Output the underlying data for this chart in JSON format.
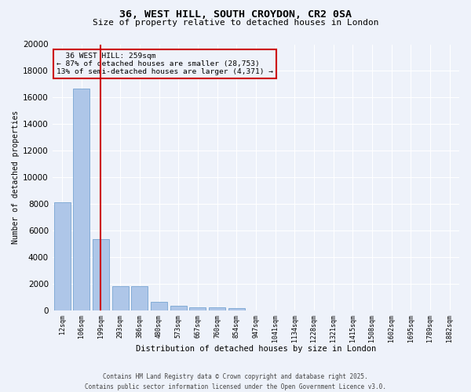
{
  "title_line1": "36, WEST HILL, SOUTH CROYDON, CR2 0SA",
  "title_line2": "Size of property relative to detached houses in London",
  "xlabel": "Distribution of detached houses by size in London",
  "ylabel": "Number of detached properties",
  "categories": [
    "12sqm",
    "106sqm",
    "199sqm",
    "293sqm",
    "386sqm",
    "480sqm",
    "573sqm",
    "667sqm",
    "760sqm",
    "854sqm",
    "947sqm",
    "1041sqm",
    "1134sqm",
    "1228sqm",
    "1321sqm",
    "1415sqm",
    "1508sqm",
    "1602sqm",
    "1695sqm",
    "1789sqm",
    "1882sqm"
  ],
  "values": [
    8100,
    16700,
    5350,
    1850,
    1850,
    620,
    340,
    260,
    210,
    150,
    0,
    0,
    0,
    0,
    0,
    0,
    0,
    0,
    0,
    0,
    0
  ],
  "bar_color": "#aec6e8",
  "bar_edge_color": "#6699cc",
  "vline_x_index": 2,
  "vline_color": "#cc0000",
  "ylim": [
    0,
    20000
  ],
  "yticks": [
    0,
    2000,
    4000,
    6000,
    8000,
    10000,
    12000,
    14000,
    16000,
    18000,
    20000
  ],
  "annotation_title": "36 WEST HILL: 259sqm",
  "annotation_line1": "← 87% of detached houses are smaller (28,753)",
  "annotation_line2": "13% of semi-detached houses are larger (4,371) →",
  "annotation_box_color": "#cc0000",
  "bg_color": "#eef2fa",
  "grid_color": "#ffffff",
  "footer_line1": "Contains HM Land Registry data © Crown copyright and database right 2025.",
  "footer_line2": "Contains public sector information licensed under the Open Government Licence v3.0."
}
